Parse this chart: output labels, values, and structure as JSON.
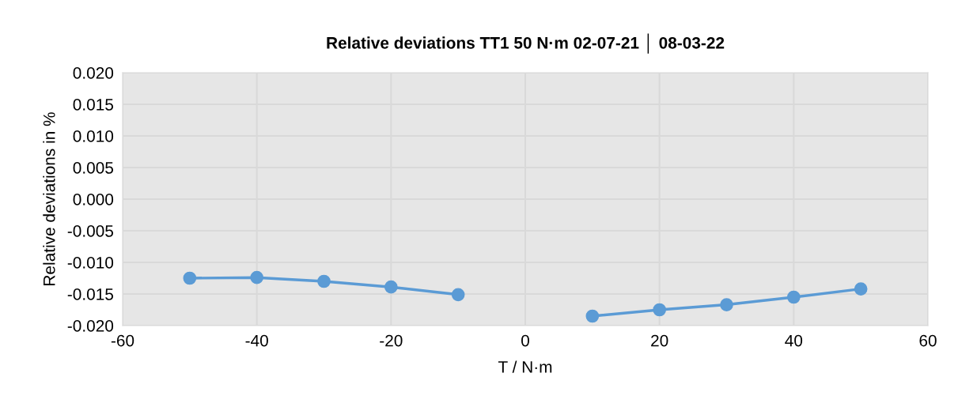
{
  "chart_data": {
    "type": "line",
    "title": "Relative deviations TT1 50 N·m 02-07-21 │ 08-03-22",
    "xlabel": "T / N·m",
    "ylabel": "Relative deviations in %",
    "x": [
      -50,
      -40,
      -30,
      -20,
      -10,
      0,
      10,
      20,
      30,
      40,
      50
    ],
    "series": [
      {
        "color": "#5b9bd5",
        "values": [
          -0.0125,
          -0.0124,
          -0.013,
          -0.0139,
          -0.0151,
          null,
          -0.0185,
          -0.0175,
          -0.0167,
          -0.0155,
          -0.0142
        ]
      }
    ],
    "xlim": [
      -60,
      60
    ],
    "xticks": [
      -60,
      -40,
      -20,
      0,
      20,
      40,
      60
    ],
    "ylim": [
      -0.02,
      0.02
    ],
    "yticks": [
      {
        "value": -0.02,
        "label": "-0.020"
      },
      {
        "value": -0.015,
        "label": "-0.015"
      },
      {
        "value": -0.01,
        "label": "-0.010"
      },
      {
        "value": -0.005,
        "label": "-0.005"
      },
      {
        "value": 0,
        "label": "0.000"
      },
      {
        "value": 0.005,
        "label": "0.005"
      },
      {
        "value": 0.01,
        "label": "0.010"
      },
      {
        "value": 0.015,
        "label": "0.015"
      },
      {
        "value": 0.02,
        "label": "0.020"
      }
    ],
    "grid": true,
    "marker": "circle",
    "line_style": "solid"
  }
}
